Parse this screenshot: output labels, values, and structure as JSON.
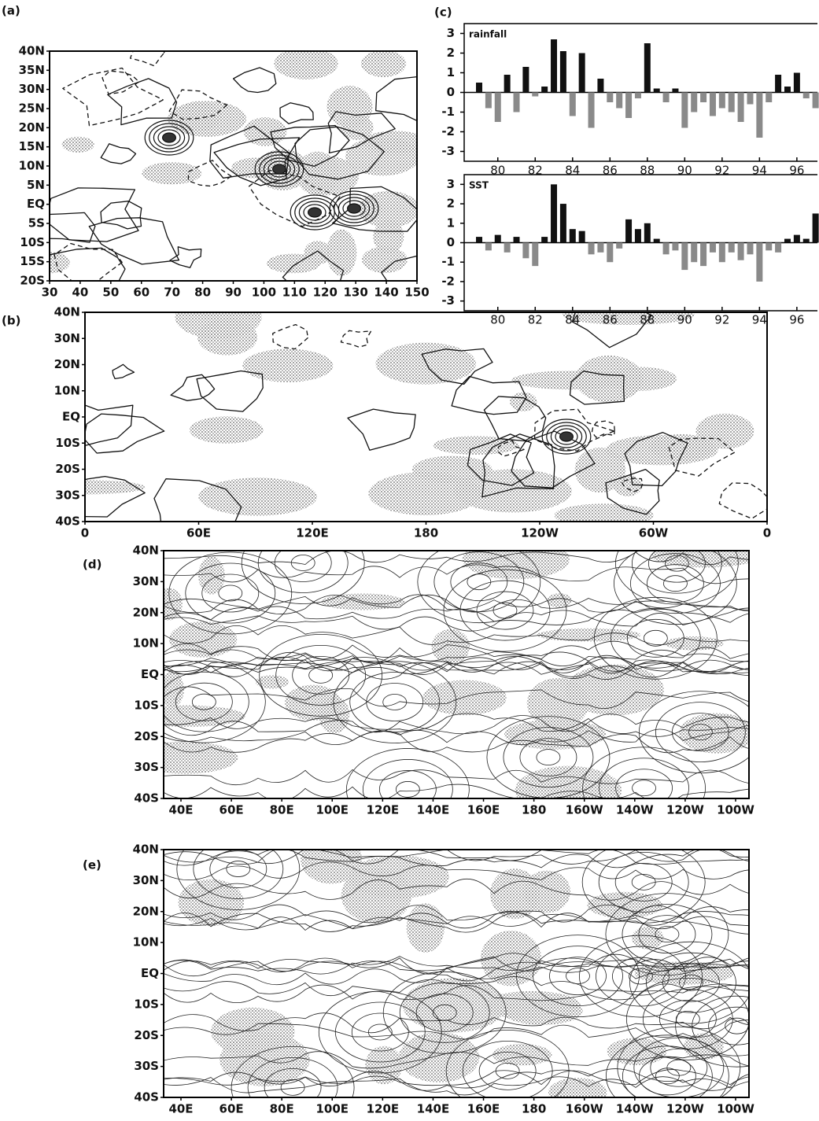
{
  "panels": {
    "a": {
      "label": "(a)",
      "yticks": [
        "40N",
        "35N",
        "30N",
        "25N",
        "20N",
        "15N",
        "10N",
        "5N",
        "EQ",
        "5S",
        "10S",
        "15S",
        "20S"
      ],
      "xticks": [
        30,
        40,
        50,
        60,
        70,
        80,
        90,
        100,
        110,
        120,
        130,
        140,
        150
      ],
      "xlim": [
        30,
        150
      ]
    },
    "b": {
      "label": "(b)",
      "yticks": [
        "40N",
        "30N",
        "20N",
        "10N",
        "EQ",
        "10S",
        "20S",
        "30S",
        "40S"
      ],
      "xticks": [
        "0",
        "60E",
        "120E",
        "180",
        "120W",
        "60W",
        "0"
      ]
    },
    "c": {
      "label": "(c)"
    },
    "d": {
      "label": "(d)",
      "yticks": [
        "40N",
        "30N",
        "20N",
        "10N",
        "EQ",
        "10S",
        "20S",
        "30S",
        "40S"
      ],
      "xticks": [
        "40E",
        "60E",
        "80E",
        "100E",
        "120E",
        "140E",
        "160E",
        "180",
        "160W",
        "140W",
        "120W",
        "100W"
      ]
    },
    "e": {
      "label": "(e)",
      "yticks": [
        "40N",
        "30N",
        "20N",
        "10N",
        "EQ",
        "10S",
        "20S",
        "30S",
        "40S"
      ],
      "xticks": [
        "40E",
        "60E",
        "80E",
        "100E",
        "120E",
        "140E",
        "160E",
        "180",
        "160W",
        "140W",
        "120W",
        "100W"
      ]
    }
  },
  "chart_data": [
    {
      "type": "bar",
      "title": "rainfall",
      "color": "#111111",
      "negative_color": "#8a8a8a",
      "x": [
        79,
        79.5,
        80,
        80.5,
        81,
        81.5,
        82,
        82.5,
        83,
        83.5,
        84,
        84.5,
        85,
        85.5,
        86,
        86.5,
        87,
        87.5,
        88,
        88.5,
        89,
        89.5,
        90,
        90.5,
        91,
        91.5,
        92,
        92.5,
        93,
        93.5,
        94,
        94.5,
        95,
        95.5,
        96,
        96.5,
        97
      ],
      "values": [
        0.5,
        -0.8,
        -1.5,
        0.9,
        -1.0,
        1.3,
        -0.2,
        0.3,
        2.7,
        2.1,
        -1.2,
        2.0,
        -1.8,
        0.7,
        -0.5,
        -0.8,
        -1.3,
        -0.3,
        2.5,
        0.2,
        -0.5,
        0.2,
        -1.8,
        -1.0,
        -0.5,
        -1.2,
        -0.8,
        -1.0,
        -1.5,
        -0.6,
        -2.3,
        -0.5,
        0.9,
        0.3,
        1.0,
        -0.3,
        -0.8
      ],
      "xlim": [
        78.2,
        97.1
      ],
      "xticks": [
        80,
        82,
        84,
        86,
        88,
        90,
        92,
        94,
        96
      ],
      "ylim": [
        -3.5,
        3.5
      ],
      "yticks": [
        3,
        2,
        1,
        0,
        -1,
        -2,
        -3
      ]
    },
    {
      "type": "bar",
      "title": "SST",
      "color": "#111111",
      "negative_color": "#8a8a8a",
      "x": [
        79,
        79.5,
        80,
        80.5,
        81,
        81.5,
        82,
        82.5,
        83,
        83.5,
        84,
        84.5,
        85,
        85.5,
        86,
        86.5,
        87,
        87.5,
        88,
        88.5,
        89,
        89.5,
        90,
        90.5,
        91,
        91.5,
        92,
        92.5,
        93,
        93.5,
        94,
        94.5,
        95,
        95.5,
        96,
        96.5,
        97
      ],
      "values": [
        0.3,
        -0.4,
        0.4,
        -0.5,
        0.3,
        -0.8,
        -1.2,
        0.3,
        3.0,
        2.0,
        0.7,
        0.6,
        -0.6,
        -0.5,
        -1.0,
        -0.3,
        1.2,
        0.7,
        1.0,
        0.2,
        -0.6,
        -0.4,
        -1.4,
        -1.0,
        -1.2,
        -0.5,
        -1.0,
        -0.5,
        -0.9,
        -0.6,
        -2.0,
        -0.4,
        -0.5,
        0.2,
        0.4,
        0.2,
        1.5
      ],
      "xlim": [
        78.2,
        97.1
      ],
      "xticks": [
        80,
        82,
        84,
        86,
        88,
        90,
        92,
        94,
        96
      ],
      "ylim": [
        -3.5,
        3.5
      ],
      "yticks": [
        3,
        2,
        1,
        0,
        -1,
        -2,
        -3
      ]
    }
  ]
}
